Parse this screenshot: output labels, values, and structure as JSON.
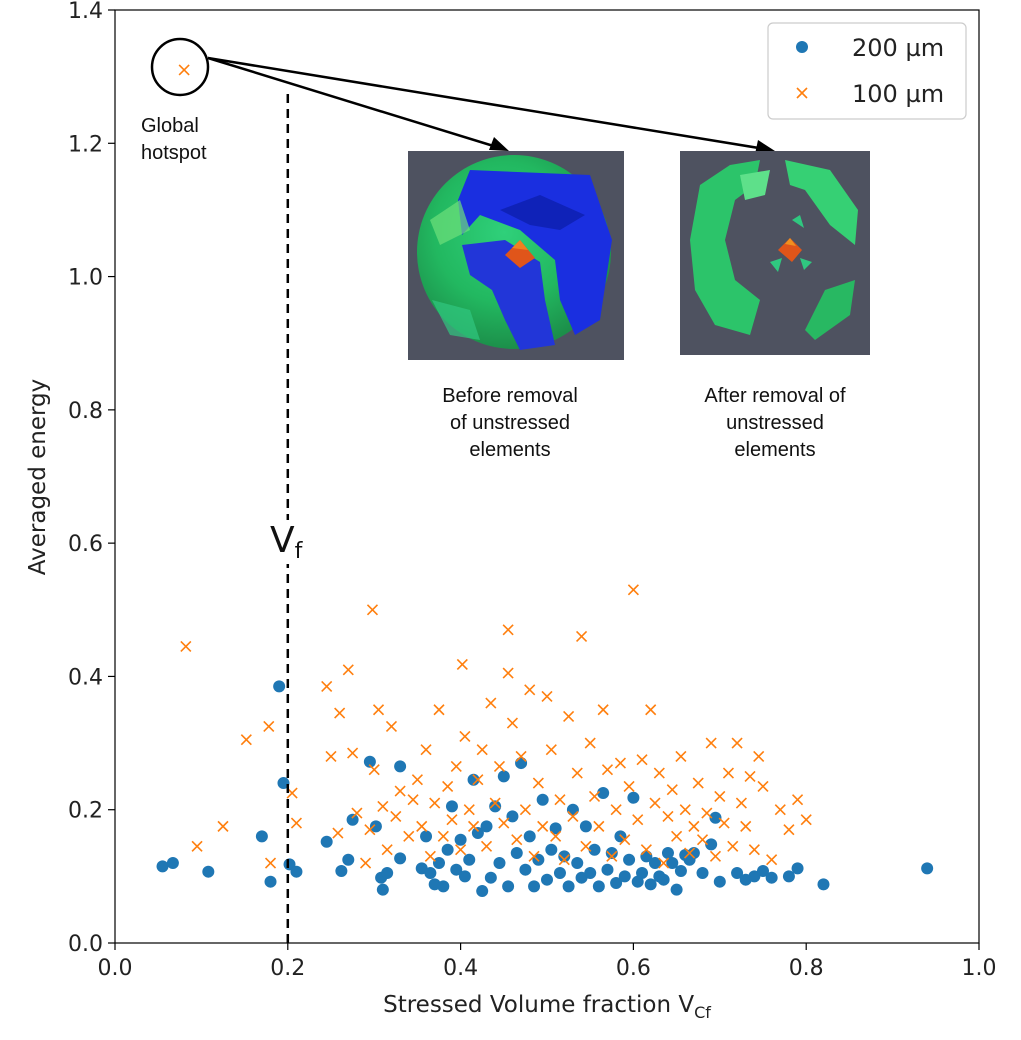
{
  "chart_data": {
    "type": "scatter",
    "title": "",
    "xlabel": "Stressed Volume fraction V",
    "xlabel_sub": "Cf",
    "ylabel": "Averaged energy",
    "xlim": [
      0.0,
      1.0
    ],
    "ylim": [
      0.0,
      1.4
    ],
    "xticks": [
      "0.0",
      "0.2",
      "0.4",
      "0.6",
      "0.8",
      "1.0"
    ],
    "yticks": [
      "0.0",
      "0.2",
      "0.4",
      "0.6",
      "0.8",
      "1.0",
      "1.2",
      "1.4"
    ],
    "legend": [
      "200 µm",
      "100 µm"
    ],
    "legend_position": "top-right",
    "vline": {
      "x": 0.2,
      "label": "V",
      "label_sub": "f"
    },
    "annotations": {
      "global_hotspot": [
        "Global",
        "hotspot"
      ],
      "before": [
        "Before removal",
        "of unstressed",
        "elements"
      ],
      "after": [
        "After removal of",
        "unstressed",
        "elements"
      ]
    },
    "series": [
      {
        "name": "200 µm",
        "marker": "circle",
        "color": "#1f77b4",
        "points": [
          [
            0.055,
            0.115
          ],
          [
            0.067,
            0.12
          ],
          [
            0.108,
            0.107
          ],
          [
            0.17,
            0.16
          ],
          [
            0.18,
            0.092
          ],
          [
            0.19,
            0.385
          ],
          [
            0.195,
            0.24
          ],
          [
            0.202,
            0.118
          ],
          [
            0.21,
            0.107
          ],
          [
            0.245,
            0.152
          ],
          [
            0.262,
            0.108
          ],
          [
            0.27,
            0.125
          ],
          [
            0.275,
            0.185
          ],
          [
            0.295,
            0.272
          ],
          [
            0.302,
            0.175
          ],
          [
            0.308,
            0.098
          ],
          [
            0.31,
            0.08
          ],
          [
            0.315,
            0.105
          ],
          [
            0.33,
            0.265
          ],
          [
            0.33,
            0.127
          ],
          [
            0.355,
            0.112
          ],
          [
            0.36,
            0.16
          ],
          [
            0.365,
            0.105
          ],
          [
            0.37,
            0.088
          ],
          [
            0.375,
            0.12
          ],
          [
            0.38,
            0.085
          ],
          [
            0.385,
            0.14
          ],
          [
            0.39,
            0.205
          ],
          [
            0.395,
            0.11
          ],
          [
            0.4,
            0.155
          ],
          [
            0.405,
            0.1
          ],
          [
            0.41,
            0.125
          ],
          [
            0.415,
            0.245
          ],
          [
            0.42,
            0.165
          ],
          [
            0.425,
            0.078
          ],
          [
            0.43,
            0.175
          ],
          [
            0.435,
            0.098
          ],
          [
            0.44,
            0.205
          ],
          [
            0.445,
            0.12
          ],
          [
            0.45,
            0.25
          ],
          [
            0.455,
            0.085
          ],
          [
            0.46,
            0.19
          ],
          [
            0.465,
            0.135
          ],
          [
            0.47,
            0.27
          ],
          [
            0.475,
            0.11
          ],
          [
            0.48,
            0.16
          ],
          [
            0.485,
            0.085
          ],
          [
            0.49,
            0.125
          ],
          [
            0.495,
            0.215
          ],
          [
            0.5,
            0.095
          ],
          [
            0.505,
            0.14
          ],
          [
            0.51,
            0.172
          ],
          [
            0.515,
            0.105
          ],
          [
            0.52,
            0.13
          ],
          [
            0.525,
            0.085
          ],
          [
            0.53,
            0.2
          ],
          [
            0.535,
            0.12
          ],
          [
            0.54,
            0.098
          ],
          [
            0.545,
            0.175
          ],
          [
            0.55,
            0.105
          ],
          [
            0.555,
            0.14
          ],
          [
            0.56,
            0.085
          ],
          [
            0.565,
            0.225
          ],
          [
            0.57,
            0.11
          ],
          [
            0.575,
            0.135
          ],
          [
            0.58,
            0.09
          ],
          [
            0.585,
            0.16
          ],
          [
            0.59,
            0.1
          ],
          [
            0.595,
            0.125
          ],
          [
            0.6,
            0.218
          ],
          [
            0.605,
            0.092
          ],
          [
            0.61,
            0.105
          ],
          [
            0.615,
            0.13
          ],
          [
            0.62,
            0.088
          ],
          [
            0.625,
            0.12
          ],
          [
            0.63,
            0.1
          ],
          [
            0.635,
            0.095
          ],
          [
            0.64,
            0.135
          ],
          [
            0.645,
            0.12
          ],
          [
            0.65,
            0.08
          ],
          [
            0.655,
            0.108
          ],
          [
            0.66,
            0.132
          ],
          [
            0.665,
            0.125
          ],
          [
            0.67,
            0.135
          ],
          [
            0.68,
            0.105
          ],
          [
            0.69,
            0.148
          ],
          [
            0.695,
            0.188
          ],
          [
            0.7,
            0.092
          ],
          [
            0.72,
            0.105
          ],
          [
            0.73,
            0.095
          ],
          [
            0.74,
            0.1
          ],
          [
            0.75,
            0.108
          ],
          [
            0.76,
            0.098
          ],
          [
            0.78,
            0.1
          ],
          [
            0.79,
            0.112
          ],
          [
            0.82,
            0.088
          ],
          [
            0.94,
            0.112
          ]
        ]
      },
      {
        "name": "100 µm",
        "marker": "x",
        "color": "#ff7f0e",
        "points": [
          [
            0.08,
            1.31
          ],
          [
            0.082,
            0.445
          ],
          [
            0.095,
            0.145
          ],
          [
            0.125,
            0.175
          ],
          [
            0.152,
            0.305
          ],
          [
            0.178,
            0.325
          ],
          [
            0.18,
            0.12
          ],
          [
            0.205,
            0.225
          ],
          [
            0.21,
            0.18
          ],
          [
            0.245,
            0.385
          ],
          [
            0.25,
            0.28
          ],
          [
            0.258,
            0.165
          ],
          [
            0.26,
            0.345
          ],
          [
            0.27,
            0.41
          ],
          [
            0.275,
            0.285
          ],
          [
            0.28,
            0.195
          ],
          [
            0.29,
            0.12
          ],
          [
            0.295,
            0.17
          ],
          [
            0.298,
            0.5
          ],
          [
            0.3,
            0.26
          ],
          [
            0.305,
            0.35
          ],
          [
            0.31,
            0.205
          ],
          [
            0.315,
            0.14
          ],
          [
            0.32,
            0.325
          ],
          [
            0.325,
            0.19
          ],
          [
            0.33,
            0.228
          ],
          [
            0.34,
            0.16
          ],
          [
            0.345,
            0.215
          ],
          [
            0.35,
            0.245
          ],
          [
            0.355,
            0.175
          ],
          [
            0.36,
            0.29
          ],
          [
            0.365,
            0.13
          ],
          [
            0.37,
            0.21
          ],
          [
            0.375,
            0.35
          ],
          [
            0.38,
            0.16
          ],
          [
            0.385,
            0.235
          ],
          [
            0.39,
            0.185
          ],
          [
            0.395,
            0.265
          ],
          [
            0.4,
            0.14
          ],
          [
            0.402,
            0.418
          ],
          [
            0.405,
            0.31
          ],
          [
            0.41,
            0.2
          ],
          [
            0.415,
            0.175
          ],
          [
            0.42,
            0.245
          ],
          [
            0.425,
            0.29
          ],
          [
            0.43,
            0.145
          ],
          [
            0.435,
            0.36
          ],
          [
            0.44,
            0.21
          ],
          [
            0.445,
            0.265
          ],
          [
            0.45,
            0.18
          ],
          [
            0.455,
            0.47
          ],
          [
            0.455,
            0.405
          ],
          [
            0.46,
            0.33
          ],
          [
            0.465,
            0.155
          ],
          [
            0.47,
            0.28
          ],
          [
            0.475,
            0.2
          ],
          [
            0.48,
            0.38
          ],
          [
            0.485,
            0.13
          ],
          [
            0.49,
            0.24
          ],
          [
            0.495,
            0.175
          ],
          [
            0.5,
            0.37
          ],
          [
            0.505,
            0.29
          ],
          [
            0.51,
            0.16
          ],
          [
            0.515,
            0.215
          ],
          [
            0.52,
            0.125
          ],
          [
            0.525,
            0.34
          ],
          [
            0.53,
            0.19
          ],
          [
            0.535,
            0.255
          ],
          [
            0.54,
            0.46
          ],
          [
            0.545,
            0.145
          ],
          [
            0.55,
            0.3
          ],
          [
            0.555,
            0.22
          ],
          [
            0.56,
            0.175
          ],
          [
            0.565,
            0.35
          ],
          [
            0.57,
            0.26
          ],
          [
            0.575,
            0.13
          ],
          [
            0.58,
            0.2
          ],
          [
            0.585,
            0.27
          ],
          [
            0.59,
            0.155
          ],
          [
            0.595,
            0.235
          ],
          [
            0.6,
            0.53
          ],
          [
            0.605,
            0.185
          ],
          [
            0.61,
            0.275
          ],
          [
            0.615,
            0.14
          ],
          [
            0.62,
            0.35
          ],
          [
            0.625,
            0.21
          ],
          [
            0.63,
            0.255
          ],
          [
            0.635,
            0.12
          ],
          [
            0.64,
            0.19
          ],
          [
            0.645,
            0.23
          ],
          [
            0.65,
            0.16
          ],
          [
            0.655,
            0.28
          ],
          [
            0.66,
            0.2
          ],
          [
            0.665,
            0.135
          ],
          [
            0.67,
            0.175
          ],
          [
            0.675,
            0.24
          ],
          [
            0.68,
            0.155
          ],
          [
            0.685,
            0.195
          ],
          [
            0.69,
            0.3
          ],
          [
            0.695,
            0.13
          ],
          [
            0.7,
            0.22
          ],
          [
            0.705,
            0.18
          ],
          [
            0.71,
            0.255
          ],
          [
            0.715,
            0.145
          ],
          [
            0.72,
            0.3
          ],
          [
            0.725,
            0.21
          ],
          [
            0.73,
            0.175
          ],
          [
            0.735,
            0.25
          ],
          [
            0.74,
            0.14
          ],
          [
            0.745,
            0.28
          ],
          [
            0.75,
            0.235
          ],
          [
            0.76,
            0.125
          ],
          [
            0.77,
            0.2
          ],
          [
            0.78,
            0.17
          ],
          [
            0.79,
            0.215
          ],
          [
            0.8,
            0.185
          ]
        ]
      }
    ]
  }
}
